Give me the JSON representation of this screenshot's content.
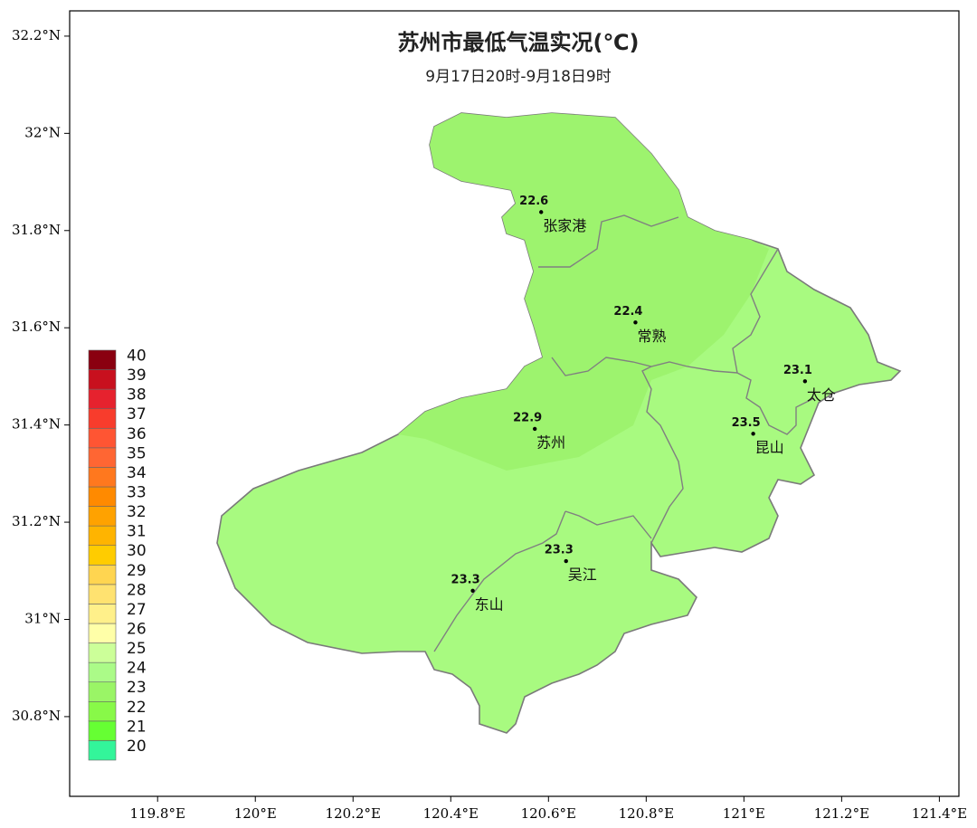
{
  "title": "苏州市最低气温实况(℃)",
  "subtitle": "9月17日20时-9月18日9时",
  "xlim": [
    119.62,
    121.44
  ],
  "ylim": [
    30.636,
    32.252
  ],
  "xticks": [
    {
      "value": 119.8,
      "label": "119.8°E"
    },
    {
      "value": 120,
      "label": "120°E"
    },
    {
      "value": 120.2,
      "label": "120.2°E"
    },
    {
      "value": 120.4,
      "label": "120.4°E"
    },
    {
      "value": 120.6,
      "label": "120.6°E"
    },
    {
      "value": 120.8,
      "label": "120.8°E"
    },
    {
      "value": 121,
      "label": "121°E"
    },
    {
      "value": 121.2,
      "label": "121.2°E"
    },
    {
      "value": 121.4,
      "label": "121.4°E"
    }
  ],
  "yticks": [
    {
      "value": 32.2,
      "label": "32.2°N"
    },
    {
      "value": 32,
      "label": "32°N"
    },
    {
      "value": 31.8,
      "label": "31.8°N"
    },
    {
      "value": 31.6,
      "label": "31.6°N"
    },
    {
      "value": 31.4,
      "label": "31.4°N"
    },
    {
      "value": 31.2,
      "label": "31.2°N"
    },
    {
      "value": 31,
      "label": "31°N"
    },
    {
      "value": 30.8,
      "label": "30.8°N"
    }
  ],
  "stations": [
    {
      "name": "张家港",
      "value": 22.6,
      "lon": 120.585,
      "lat": 31.838
    },
    {
      "name": "常熟",
      "value": 22.4,
      "lon": 120.778,
      "lat": 31.611
    },
    {
      "name": "太仓",
      "value": 23.1,
      "lon": 121.125,
      "lat": 31.49
    },
    {
      "name": "昆山",
      "value": 23.5,
      "lon": 121.019,
      "lat": 31.382
    },
    {
      "name": "苏州",
      "value": 22.9,
      "lon": 120.572,
      "lat": 31.392
    },
    {
      "name": "吴江",
      "value": 23.3,
      "lon": 120.636,
      "lat": 31.12
    },
    {
      "name": "东山",
      "value": 23.3,
      "lon": 120.445,
      "lat": 31.059
    }
  ],
  "legend": {
    "levels": [
      20,
      21,
      22,
      23,
      24,
      25,
      26,
      27,
      28,
      29,
      30,
      31,
      32,
      33,
      34,
      35,
      36,
      37,
      38,
      39,
      40
    ],
    "colors": [
      "#33f59a",
      "#66ff33",
      "#88f948",
      "#9af566",
      "#abfb88",
      "#ccff99",
      "#ffffa8",
      "#fff08a",
      "#ffe270",
      "#ffd550",
      "#ffcc00",
      "#ffb400",
      "#ffa200",
      "#ff8a00",
      "#ff781e",
      "#ff6633",
      "#ff5533",
      "#f83c2c",
      "#e6222e",
      "#c8101e",
      "#8a0010"
    ]
  }
}
